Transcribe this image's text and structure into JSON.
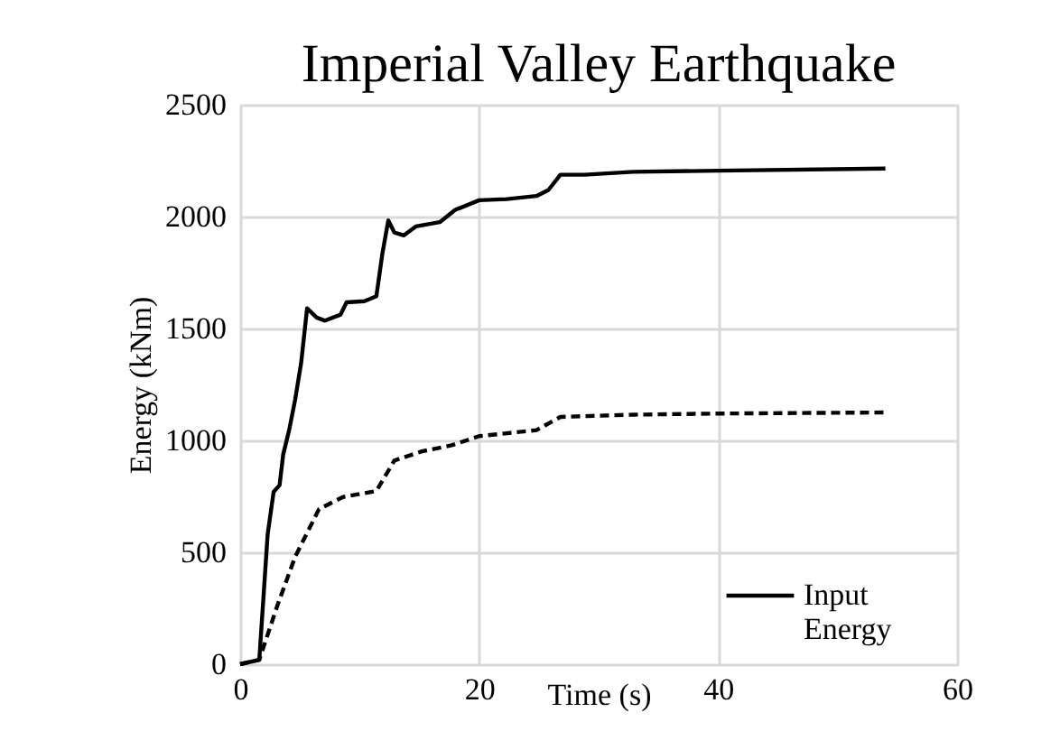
{
  "chart_data": {
    "type": "line",
    "title": "Imperial Valley Earthquake",
    "xlabel": "Time (s)",
    "ylabel": "Energy (kNm)",
    "xlim": [
      0,
      60
    ],
    "xticks": [
      0,
      20,
      40,
      60
    ],
    "ylim": [
      0,
      2500
    ],
    "yticks": [
      0,
      500,
      1000,
      1500,
      2000,
      2500
    ],
    "grid": true,
    "legend": "bottom right",
    "marker": "none",
    "series": [
      {
        "name": "Input Energy",
        "color": "#000000",
        "line_style": "solid",
        "x": [
          0,
          1.6,
          2.3,
          2.8,
          3.3,
          3.6,
          4.1,
          4.6,
          5.1,
          5.6,
          6.4,
          7.1,
          8.4,
          8.9,
          10.4,
          11.4,
          11.9,
          12.4,
          12.9,
          13.7,
          14.7,
          16.7,
          18.0,
          20.0,
          22.3,
          24.8,
          25.8,
          26.8,
          28.8,
          32.9,
          40,
          54
        ],
        "values": [
          0,
          20,
          580,
          770,
          800,
          937,
          1046,
          1182,
          1345,
          1590,
          1549,
          1535,
          1562,
          1617,
          1622,
          1644,
          1834,
          1983,
          1929,
          1916,
          1956,
          1975,
          2030,
          2073,
          2078,
          2092,
          2119,
          2187,
          2187,
          2200,
          2205,
          2215
        ]
      },
      {
        "color": "#000000",
        "line_style": "dashed",
        "x": [
          0,
          1.6,
          3.1,
          4.6,
          6.6,
          8.6,
          11.4,
          12.9,
          15.2,
          17.7,
          20.0,
          24.8,
          26.8,
          32.9,
          40,
          54
        ],
        "values": [
          0,
          20,
          260,
          480,
          693,
          747,
          774,
          910,
          951,
          978,
          1019,
          1046,
          1105,
          1115,
          1120,
          1125
        ]
      }
    ]
  }
}
